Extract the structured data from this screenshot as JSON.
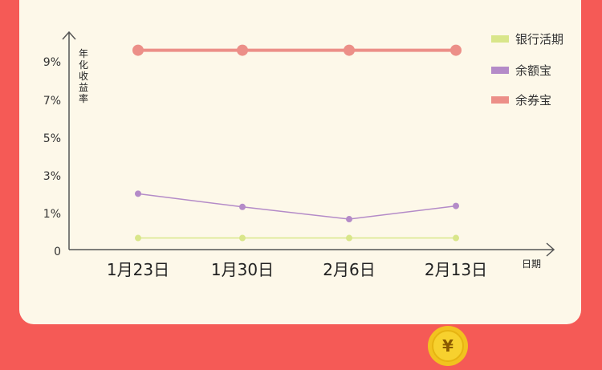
{
  "chart_data": {
    "type": "line",
    "categories": [
      "1月23日",
      "1月30日",
      "2月6日",
      "2月13日"
    ],
    "yticks": [
      "0",
      "1%",
      "3%",
      "5%",
      "7%",
      "9%"
    ],
    "ylabel": "年化收益率",
    "xlabel": "日期",
    "legend_position": "top-right",
    "grid": false,
    "series": [
      {
        "name": "银行活期",
        "color": "#d9e68a",
        "values": [
          0.35,
          0.35,
          0.35,
          0.35
        ]
      },
      {
        "name": "余额宝",
        "color": "#b48bc8",
        "values": [
          2.05,
          1.35,
          0.85,
          1.4
        ]
      },
      {
        "name": "余券宝",
        "color": "#ec8f88",
        "values": [
          9.6,
          9.6,
          9.6,
          9.6
        ]
      }
    ]
  },
  "coin": {
    "icon": "yuan-coin-icon",
    "symbol": "¥",
    "color": "#f7d12e"
  }
}
